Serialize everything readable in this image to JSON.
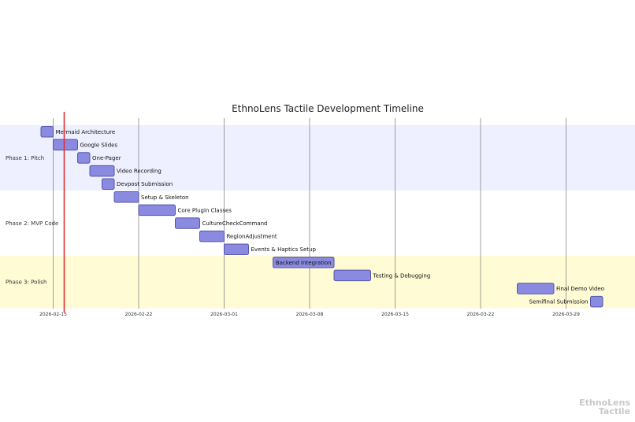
{
  "chart_data": {
    "type": "gantt",
    "title": "EthnoLens Tactile Development Timeline",
    "x_range": [
      "2026-02-14",
      "2026-04-01"
    ],
    "x_ticks": [
      "2026-02-15",
      "2026-02-22",
      "2026-03-01",
      "2026-03-08",
      "2026-03-15",
      "2026-03-22",
      "2026-03-29"
    ],
    "tick_labels": [
      "2026-02-15",
      "2026-02-22",
      "2026-03-01",
      "2026-03-08",
      "2026-03-15",
      "2026-03-22",
      "2026-03-29"
    ],
    "today_marker": "2026-02-16",
    "colors": {
      "bar_fill": "#8a8ae0",
      "bar_stroke": "#5555aa",
      "critical_fill": "#8a8ae0",
      "section_1_bg": "#eef0ff",
      "section_2_bg": "#ffffff",
      "section_3_bg": "#fffbd5",
      "grid": "#888888",
      "today_line": "#e03030"
    },
    "sections": [
      {
        "name": "Phase 1: Pitch"
      },
      {
        "name": "Phase 2: MVP Code"
      },
      {
        "name": "Phase 3: Polish"
      }
    ],
    "tasks": [
      {
        "name": "Mermaid Architecture",
        "section": 0,
        "start": "2026-02-14",
        "end": "2026-02-15",
        "critical": false
      },
      {
        "name": "Google Slides",
        "section": 0,
        "start": "2026-02-15",
        "end": "2026-02-17",
        "critical": false
      },
      {
        "name": "One-Pager",
        "section": 0,
        "start": "2026-02-17",
        "end": "2026-02-18",
        "critical": false
      },
      {
        "name": "Video Recording",
        "section": 0,
        "start": "2026-02-18",
        "end": "2026-02-20",
        "critical": false
      },
      {
        "name": "Devpost Submission",
        "section": 0,
        "start": "2026-02-19",
        "end": "2026-02-20",
        "critical": false
      },
      {
        "name": "Setup & Skeleton",
        "section": 1,
        "start": "2026-02-20",
        "end": "2026-02-22",
        "critical": false
      },
      {
        "name": "Core Plugin Classes",
        "section": 1,
        "start": "2026-02-22",
        "end": "2026-02-25",
        "critical": false
      },
      {
        "name": "CultureCheckCommand",
        "section": 1,
        "start": "2026-02-25",
        "end": "2026-02-27",
        "critical": false
      },
      {
        "name": "RegionAdjustment",
        "section": 1,
        "start": "2026-02-27",
        "end": "2026-03-01",
        "critical": false
      },
      {
        "name": "Events & Haptics Setup",
        "section": 1,
        "start": "2026-03-01",
        "end": "2026-03-03",
        "critical": false
      },
      {
        "name": "Backend Integration",
        "section": 2,
        "start": "2026-03-05",
        "end": "2026-03-10",
        "critical": true
      },
      {
        "name": "Testing & Debugging",
        "section": 2,
        "start": "2026-03-10",
        "end": "2026-03-13",
        "critical": false
      },
      {
        "name": "Final Demo Video",
        "section": 2,
        "start": "2026-03-25",
        "end": "2026-03-28",
        "critical": false
      },
      {
        "name": "Semifinal Submission",
        "section": 2,
        "start": "2026-03-31",
        "end": "2026-04-01",
        "critical": false
      }
    ]
  },
  "watermark": {
    "line1": "EthnoLens",
    "line2": "Tactile"
  }
}
